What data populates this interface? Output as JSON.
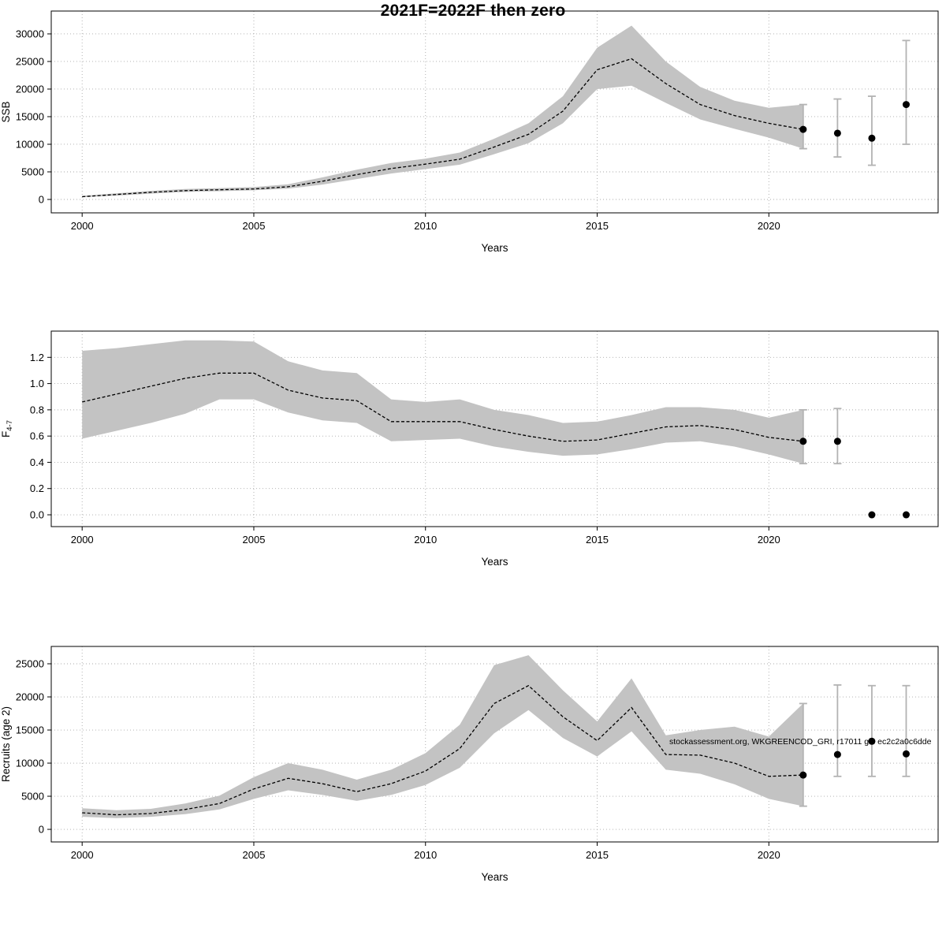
{
  "title": "2021F=2022F then zero",
  "watermark": "stockassessment.org, WKGREENCOD_GRI, r17011 git: ec2c2a0c6dde",
  "colors": {
    "band": "#c3c3c3",
    "line": "#000000",
    "error_bar": "#b3b3b3",
    "point": "#000000",
    "grid": "#aaaaaa"
  },
  "chart_data": [
    {
      "type": "line",
      "title": "",
      "xlabel": "Years",
      "ylabel": "SSB",
      "xlim": [
        1999.1,
        2024.93
      ],
      "ylim": [
        -2430,
        34140
      ],
      "xticks": [
        2000,
        2005,
        2010,
        2015,
        2020
      ],
      "yticks": [
        0,
        5000,
        10000,
        15000,
        20000,
        25000,
        30000
      ],
      "ytick_decimals": 0,
      "x": [
        2000,
        2001,
        2002,
        2003,
        2004,
        2005,
        2006,
        2007,
        2008,
        2009,
        2010,
        2011,
        2012,
        2013,
        2014,
        2015,
        2016,
        2017,
        2018,
        2019,
        2020,
        2021
      ],
      "values": [
        500,
        900,
        1300,
        1600,
        1750,
        1900,
        2300,
        3300,
        4500,
        5600,
        6400,
        7300,
        9500,
        11800,
        16000,
        23500,
        25500,
        21000,
        17200,
        15200,
        13800,
        12700
      ],
      "lower": [
        400,
        700,
        1050,
        1350,
        1500,
        1650,
        1950,
        2700,
        3700,
        4700,
        5500,
        6300,
        8200,
        10200,
        13800,
        20000,
        20600,
        17500,
        14500,
        12800,
        11200,
        9200
      ],
      "upper": [
        650,
        1100,
        1550,
        1900,
        2050,
        2250,
        2750,
        4000,
        5400,
        6600,
        7400,
        8500,
        11000,
        13800,
        18700,
        27500,
        31500,
        25000,
        20400,
        17900,
        16600,
        17200
      ],
      "forecast": {
        "x": [
          2021,
          2022,
          2023,
          2024
        ],
        "y": [
          12700,
          12000,
          11100,
          17200
        ],
        "lo": [
          9200,
          7700,
          6200,
          10000
        ],
        "hi": [
          17200,
          18200,
          18700,
          28800
        ]
      }
    },
    {
      "type": "line",
      "title": "",
      "xlabel": "Years",
      "ylabel": "F_{4-7}",
      "xlim": [
        1999.1,
        2024.93
      ],
      "ylim": [
        -0.09,
        1.4
      ],
      "xticks": [
        2000,
        2005,
        2010,
        2015,
        2020
      ],
      "yticks": [
        0.0,
        0.2,
        0.4,
        0.6,
        0.8,
        1.0,
        1.2
      ],
      "ytick_decimals": 1,
      "x": [
        2000,
        2001,
        2002,
        2003,
        2004,
        2005,
        2006,
        2007,
        2008,
        2009,
        2010,
        2011,
        2012,
        2013,
        2014,
        2015,
        2016,
        2017,
        2018,
        2019,
        2020,
        2021
      ],
      "values": [
        0.86,
        0.92,
        0.98,
        1.04,
        1.08,
        1.08,
        0.95,
        0.89,
        0.87,
        0.71,
        0.71,
        0.71,
        0.65,
        0.6,
        0.56,
        0.57,
        0.62,
        0.67,
        0.68,
        0.65,
        0.59,
        0.56
      ],
      "lower": [
        0.58,
        0.64,
        0.7,
        0.77,
        0.88,
        0.88,
        0.78,
        0.72,
        0.7,
        0.56,
        0.57,
        0.58,
        0.52,
        0.48,
        0.45,
        0.46,
        0.5,
        0.55,
        0.56,
        0.52,
        0.46,
        0.39
      ],
      "upper": [
        1.25,
        1.27,
        1.3,
        1.33,
        1.33,
        1.32,
        1.17,
        1.1,
        1.08,
        0.88,
        0.86,
        0.88,
        0.8,
        0.76,
        0.7,
        0.71,
        0.76,
        0.82,
        0.82,
        0.8,
        0.74,
        0.8
      ],
      "forecast": {
        "x": [
          2021,
          2022,
          2023,
          2024
        ],
        "y": [
          0.56,
          0.56,
          0.0,
          0.0
        ],
        "lo": [
          0.39,
          0.39,
          null,
          null
        ],
        "hi": [
          0.8,
          0.81,
          null,
          null
        ]
      }
    },
    {
      "type": "line",
      "title": "",
      "xlabel": "Years",
      "ylabel": "Recruits (age 2)",
      "xlim": [
        1999.1,
        2024.93
      ],
      "ylim": [
        -1900,
        27620
      ],
      "xticks": [
        2000,
        2005,
        2010,
        2015,
        2020
      ],
      "yticks": [
        0,
        5000,
        10000,
        15000,
        20000,
        25000
      ],
      "ytick_decimals": 0,
      "x": [
        2000,
        2001,
        2002,
        2003,
        2004,
        2005,
        2006,
        2007,
        2008,
        2009,
        2010,
        2011,
        2012,
        2013,
        2014,
        2015,
        2016,
        2017,
        2018,
        2019,
        2020,
        2021
      ],
      "values": [
        2500,
        2200,
        2400,
        3000,
        3900,
        6100,
        7700,
        6900,
        5700,
        6900,
        8800,
        12200,
        19000,
        21700,
        17000,
        13400,
        18400,
        11300,
        11200,
        10000,
        8000,
        8200
      ],
      "lower": [
        1900,
        1700,
        1900,
        2300,
        3000,
        4600,
        5900,
        5200,
        4300,
        5200,
        6700,
        9300,
        14500,
        18000,
        13800,
        11000,
        14800,
        9000,
        8400,
        6800,
        4600,
        3500
      ],
      "upper": [
        3200,
        2900,
        3100,
        3900,
        5100,
        7900,
        10000,
        9000,
        7500,
        9000,
        11500,
        15800,
        24800,
        26300,
        21000,
        16300,
        22800,
        14200,
        15000,
        15500,
        14000,
        19000
      ],
      "forecast": {
        "x": [
          2021,
          2022,
          2023,
          2024
        ],
        "y": [
          8200,
          11300,
          13300,
          11400
        ],
        "lo": [
          3500,
          8000,
          8000,
          8000
        ],
        "hi": [
          19000,
          21800,
          21700,
          21700
        ]
      }
    }
  ]
}
